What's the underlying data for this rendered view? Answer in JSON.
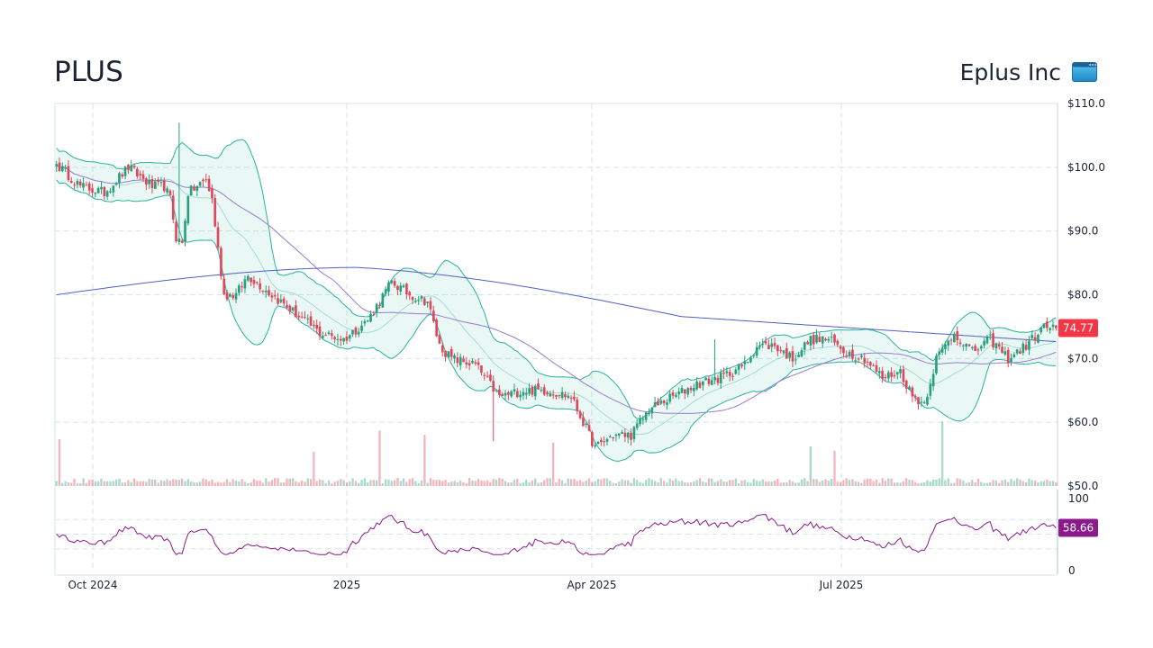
{
  "header": {
    "ticker": "PLUS",
    "company": "Eplus Inc"
  },
  "logo_icon": "browser-window-icon",
  "colors": {
    "up": "#26a17b",
    "down": "#e0475a",
    "band": "#2bb39a",
    "ma_short": "#9b7bd4",
    "ma_long": "#5060c0",
    "rsi": "#8b1a8b",
    "last_price_badge": "#f23645",
    "rsi_badge": "#8b1a8b"
  },
  "chart_data": [
    {
      "type": "candlestick",
      "title": "PLUS",
      "x_labels": [
        "Oct 2024",
        "2025",
        "Apr 2025",
        "Jul 2025"
      ],
      "y_ticks": [
        "$110.0",
        "$100.0",
        "$90.0",
        "$80.0",
        "$70.0",
        "$60.0",
        "$50.0"
      ],
      "ylim": [
        50,
        110
      ],
      "last_price": "74.77",
      "close_anchors": [
        {
          "i": 0,
          "v": 100.5
        },
        {
          "i": 8,
          "v": 97
        },
        {
          "i": 16,
          "v": 96
        },
        {
          "i": 24,
          "v": 100
        },
        {
          "i": 32,
          "v": 97
        },
        {
          "i": 36,
          "v": 97
        },
        {
          "i": 38,
          "v": 95
        },
        {
          "i": 40,
          "v": 89
        },
        {
          "i": 42,
          "v": 88
        },
        {
          "i": 44,
          "v": 96
        },
        {
          "i": 50,
          "v": 98
        },
        {
          "i": 52,
          "v": 95
        },
        {
          "i": 54,
          "v": 87
        },
        {
          "i": 56,
          "v": 80
        },
        {
          "i": 60,
          "v": 80
        },
        {
          "i": 64,
          "v": 83
        },
        {
          "i": 72,
          "v": 80
        },
        {
          "i": 80,
          "v": 77
        },
        {
          "i": 88,
          "v": 74
        },
        {
          "i": 96,
          "v": 73
        },
        {
          "i": 104,
          "v": 76
        },
        {
          "i": 112,
          "v": 82
        },
        {
          "i": 118,
          "v": 80
        },
        {
          "i": 124,
          "v": 79
        },
        {
          "i": 128,
          "v": 72
        },
        {
          "i": 132,
          "v": 70
        },
        {
          "i": 140,
          "v": 69
        },
        {
          "i": 148,
          "v": 64
        },
        {
          "i": 156,
          "v": 65
        },
        {
          "i": 164,
          "v": 65
        },
        {
          "i": 172,
          "v": 64
        },
        {
          "i": 176,
          "v": 60
        },
        {
          "i": 180,
          "v": 56
        },
        {
          "i": 186,
          "v": 58
        },
        {
          "i": 192,
          "v": 58
        },
        {
          "i": 198,
          "v": 62
        },
        {
          "i": 206,
          "v": 64
        },
        {
          "i": 214,
          "v": 66
        },
        {
          "i": 222,
          "v": 67
        },
        {
          "i": 230,
          "v": 69
        },
        {
          "i": 234,
          "v": 72
        },
        {
          "i": 240,
          "v": 72
        },
        {
          "i": 246,
          "v": 70
        },
        {
          "i": 252,
          "v": 73
        },
        {
          "i": 258,
          "v": 73
        },
        {
          "i": 264,
          "v": 71
        },
        {
          "i": 270,
          "v": 70
        },
        {
          "i": 276,
          "v": 67
        },
        {
          "i": 282,
          "v": 68
        },
        {
          "i": 286,
          "v": 64
        },
        {
          "i": 290,
          "v": 63
        },
        {
          "i": 294,
          "v": 70
        },
        {
          "i": 300,
          "v": 74
        },
        {
          "i": 306,
          "v": 71
        },
        {
          "i": 312,
          "v": 73
        },
        {
          "i": 318,
          "v": 70
        },
        {
          "i": 324,
          "v": 72
        },
        {
          "i": 330,
          "v": 75
        },
        {
          "i": 334,
          "v": 74.77
        }
      ],
      "spikes": [
        {
          "i": 41,
          "high": 107
        },
        {
          "i": 146,
          "low": 57
        },
        {
          "i": 220,
          "high": 73
        }
      ],
      "indicators": [
        "bollinger_bands_20",
        "sma_50",
        "sma_200"
      ]
    },
    {
      "type": "bar",
      "name": "volume",
      "spike_indices": [
        1,
        86,
        108,
        123,
        166,
        252,
        260,
        296
      ]
    },
    {
      "type": "line",
      "name": "RSI",
      "ylim": [
        0,
        100
      ],
      "y_ticks": [
        "100",
        "0"
      ],
      "last_value": "58.66"
    }
  ]
}
